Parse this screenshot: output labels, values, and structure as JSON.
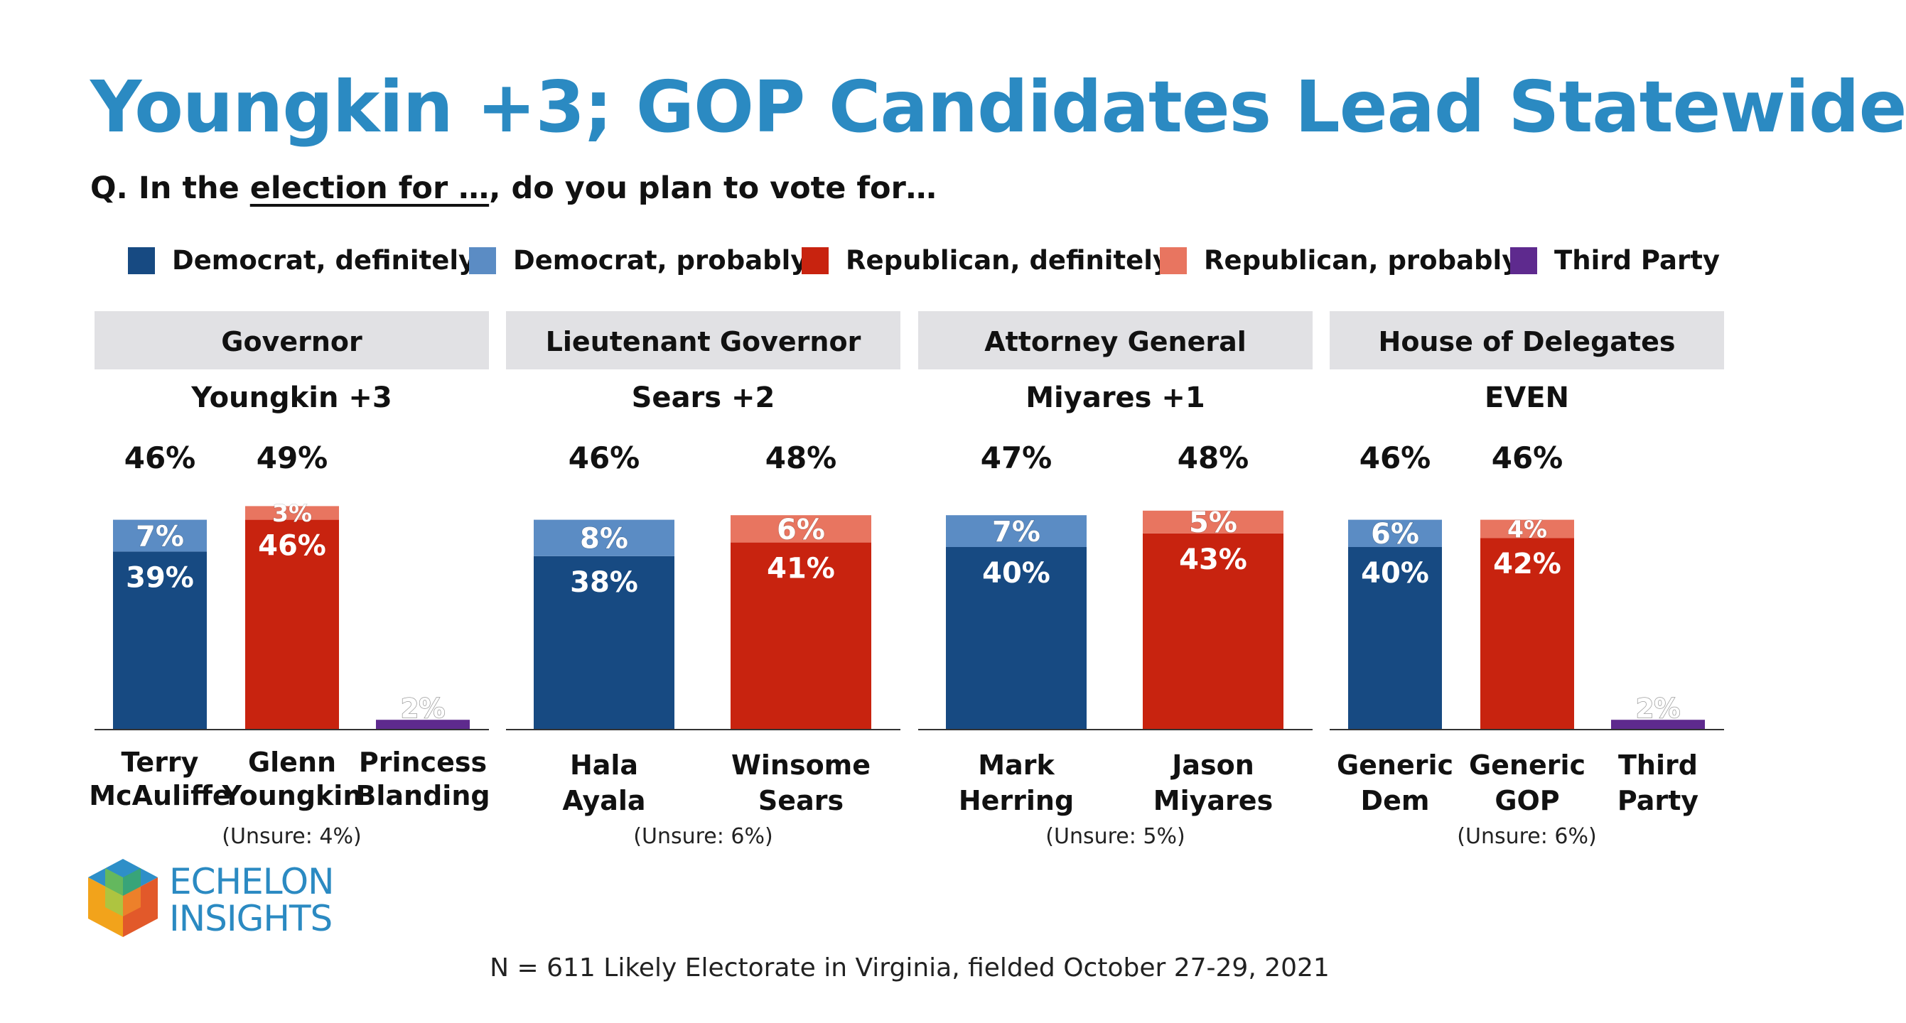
{
  "title": "Youngkin +3; GOP Candidates Lead Statewide",
  "question": {
    "prefix": "Q. In the ",
    "underlined": "election for …",
    "suffix": ", do you plan to vote for…"
  },
  "legend": [
    {
      "label": "Democrat, definitely",
      "color": "#174a82"
    },
    {
      "label": "Democrat, probably",
      "color": "#5b8cc4"
    },
    {
      "label": "Republican, definitely",
      "color": "#c8230f"
    },
    {
      "label": "Republican, probably",
      "color": "#e87560"
    },
    {
      "label": "Third Party",
      "color": "#5e2a8e"
    }
  ],
  "chart_data": [
    {
      "type": "bar",
      "title": "Governor",
      "subtitle": "Youngkin +3",
      "unsure": "(Unsure: 4%)",
      "bars": [
        {
          "candidate": [
            "Terry",
            "McAuliffe"
          ],
          "party": "dem",
          "total": 46,
          "definitely": 39,
          "probably": 7
        },
        {
          "candidate": [
            "Glenn",
            "Youngkin"
          ],
          "party": "rep",
          "total": 49,
          "definitely": 46,
          "probably": 3
        },
        {
          "candidate": [
            "Princess",
            "Blanding"
          ],
          "party": "third",
          "value": 2
        }
      ]
    },
    {
      "type": "bar",
      "title": "Lieutenant Governor",
      "subtitle": "Sears +2",
      "unsure": "(Unsure: 6%)",
      "bars": [
        {
          "candidate": [
            "Hala",
            "Ayala"
          ],
          "party": "dem",
          "total": 46,
          "definitely": 38,
          "probably": 8
        },
        {
          "candidate": [
            "Winsome",
            "Sears"
          ],
          "party": "rep",
          "total": 48,
          "definitely": 41,
          "probably": 6
        }
      ]
    },
    {
      "type": "bar",
      "title": "Attorney General",
      "subtitle": "Miyares +1",
      "unsure": "(Unsure: 5%)",
      "bars": [
        {
          "candidate": [
            "Mark",
            "Herring"
          ],
          "party": "dem",
          "total": 47,
          "definitely": 40,
          "probably": 7
        },
        {
          "candidate": [
            "Jason",
            "Miyares"
          ],
          "party": "rep",
          "total": 48,
          "definitely": 43,
          "probably": 5
        }
      ]
    },
    {
      "type": "bar",
      "title": "House of Delegates",
      "subtitle": "EVEN",
      "unsure": "(Unsure: 6%)",
      "bars": [
        {
          "candidate": [
            "Generic",
            "Dem"
          ],
          "party": "dem",
          "total": 46,
          "definitely": 40,
          "probably": 6
        },
        {
          "candidate": [
            "Generic",
            "GOP"
          ],
          "party": "rep",
          "total": 46,
          "definitely": 42,
          "probably": 4
        },
        {
          "candidate": [
            "Third",
            "Party"
          ],
          "party": "third",
          "value": 2
        }
      ]
    }
  ],
  "logo": {
    "line1": "ECHELON",
    "line2": "INSIGHTS"
  },
  "footnote": "N = 611 Likely Electorate in Virginia, fielded October 27-29, 2021"
}
